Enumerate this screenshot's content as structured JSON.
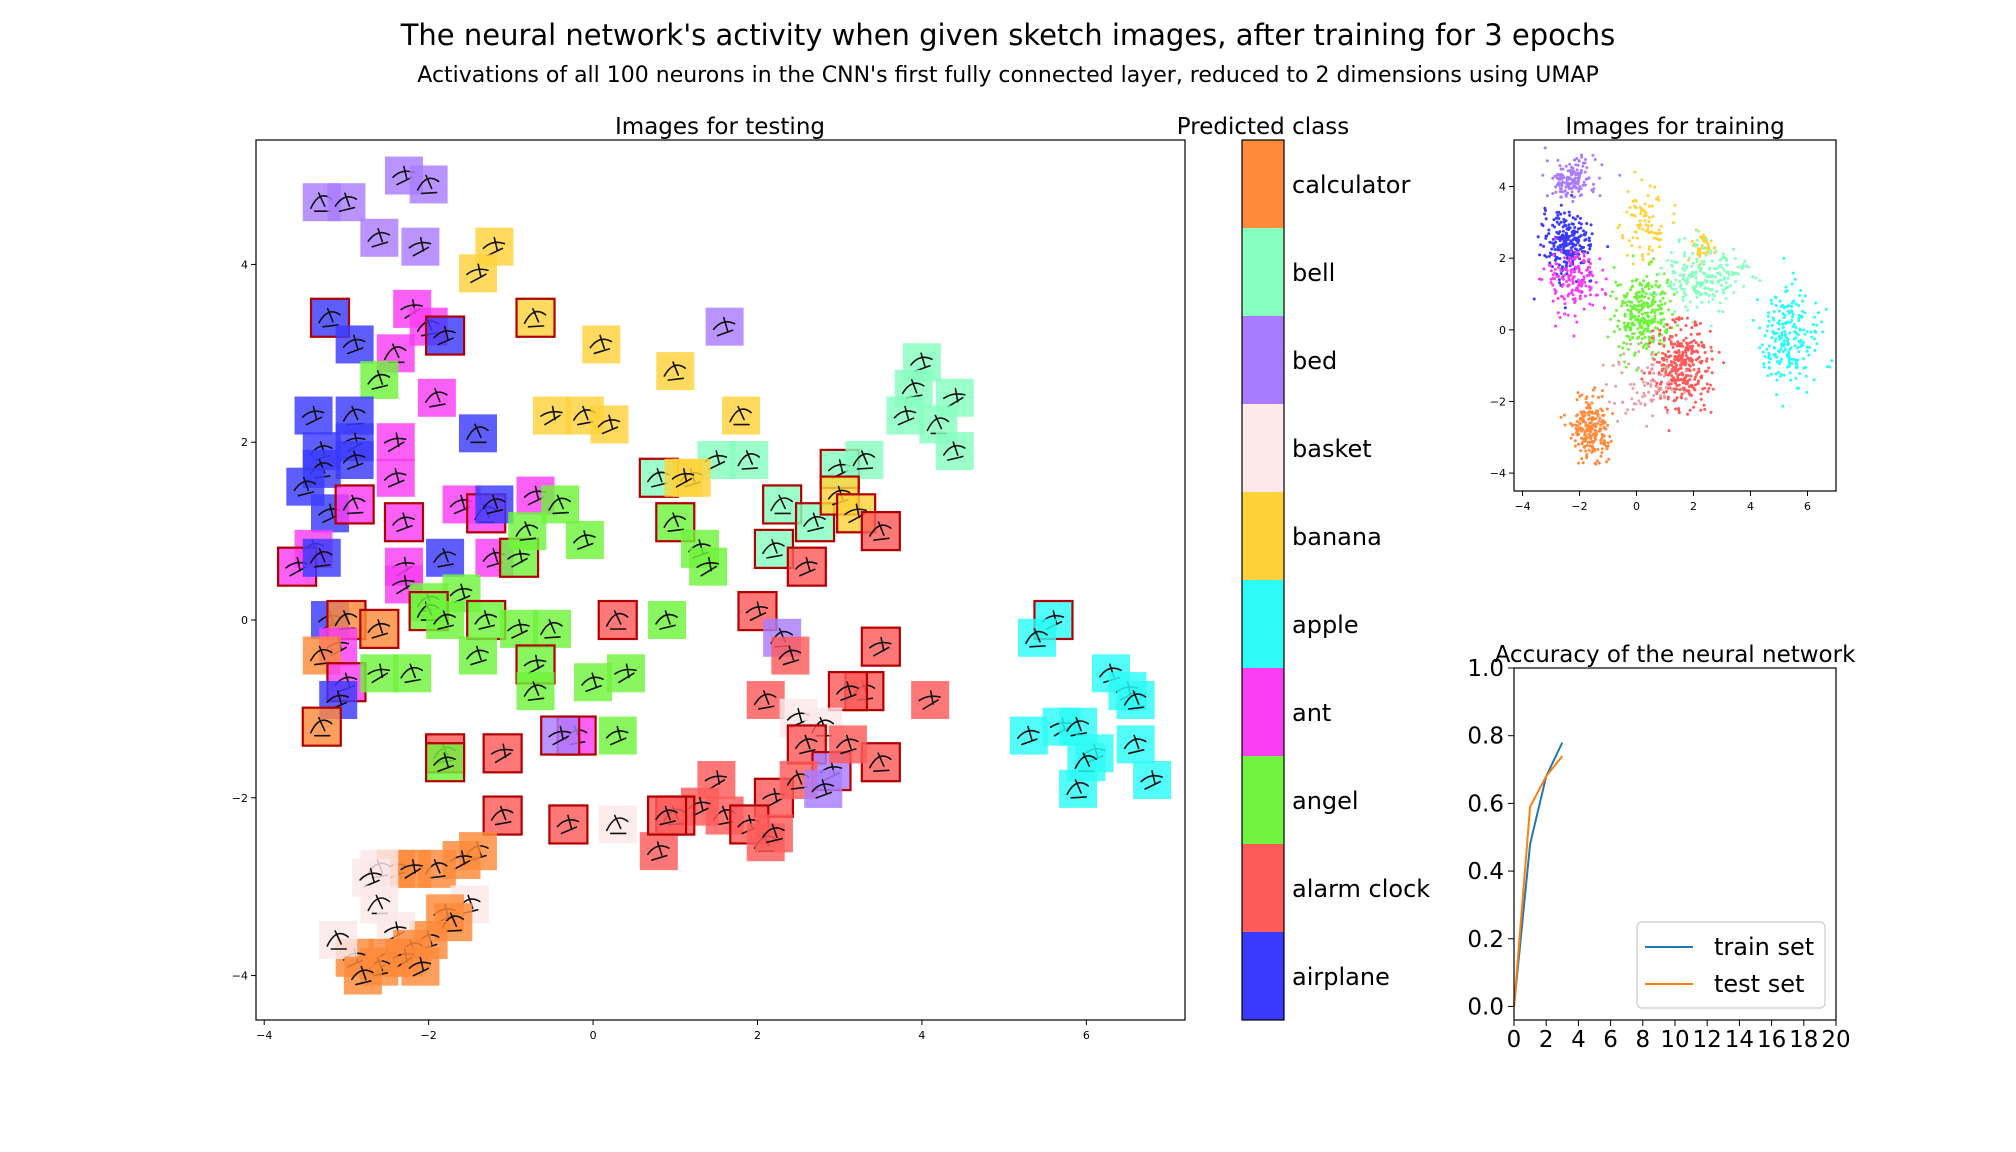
{
  "figure": {
    "title": "The neural network's activity when given sketch images, after training for 3 epochs",
    "subtitle": "Activations of all 100 neurons in the CNN's first fully connected layer, reduced to 2 dimensions using UMAP"
  },
  "chart_data": [
    {
      "id": "test",
      "type": "scatter",
      "title": "Images for testing",
      "xlabel": "",
      "ylabel": "",
      "xlim": [
        -4.1,
        7.2
      ],
      "ylim": [
        -4.5,
        5.4
      ],
      "xticks": [
        -4,
        -2,
        0,
        2,
        4,
        6
      ],
      "yticks": [
        -4,
        -2,
        0,
        2,
        4
      ],
      "xtick_labels": [
        "−4",
        "−2",
        "0",
        "2",
        "4",
        "6"
      ],
      "ytick_labels": [
        "−4",
        "−2",
        "0",
        "2",
        "4"
      ],
      "marker": "sketch thumbnail tile colored by predicted class; red border = misclassified",
      "points": [
        [
          -3.3,
          4.7,
          "bed",
          0
        ],
        [
          -3.0,
          4.7,
          "bed",
          0
        ],
        [
          -2.3,
          5.0,
          "bed",
          0
        ],
        [
          -2.0,
          4.9,
          "bed",
          0
        ],
        [
          -2.6,
          4.3,
          "bed",
          0
        ],
        [
          -2.1,
          4.2,
          "bed",
          0
        ],
        [
          -3.2,
          3.4,
          "airplane",
          1
        ],
        [
          -2.9,
          3.1,
          "airplane",
          0
        ],
        [
          -2.2,
          3.5,
          "ant",
          0
        ],
        [
          -2.0,
          3.3,
          "ant",
          0
        ],
        [
          -1.8,
          3.2,
          "airplane",
          1
        ],
        [
          -2.4,
          3.0,
          "ant",
          0
        ],
        [
          -2.6,
          2.7,
          "angel",
          0
        ],
        [
          -3.4,
          2.3,
          "airplane",
          0
        ],
        [
          -2.9,
          2.3,
          "airplane",
          0
        ],
        [
          -3.3,
          1.9,
          "airplane",
          0
        ],
        [
          -2.9,
          2.0,
          "airplane",
          0
        ],
        [
          -3.3,
          1.7,
          "airplane",
          0
        ],
        [
          -2.9,
          1.8,
          "airplane",
          0
        ],
        [
          -2.4,
          2.0,
          "ant",
          0
        ],
        [
          -1.9,
          2.5,
          "ant",
          0
        ],
        [
          -2.4,
          1.6,
          "ant",
          0
        ],
        [
          -1.4,
          2.1,
          "airplane",
          0
        ],
        [
          -3.5,
          1.5,
          "airplane",
          0
        ],
        [
          -3.2,
          1.2,
          "airplane",
          0
        ],
        [
          -2.9,
          1.3,
          "ant",
          1
        ],
        [
          -3.4,
          0.8,
          "ant",
          0
        ],
        [
          -3.6,
          0.6,
          "ant",
          1
        ],
        [
          -3.3,
          0.7,
          "airplane",
          0
        ],
        [
          -2.3,
          1.1,
          "ant",
          1
        ],
        [
          -2.3,
          0.6,
          "ant",
          0
        ],
        [
          -1.8,
          0.7,
          "airplane",
          0
        ],
        [
          -1.6,
          1.3,
          "ant",
          0
        ],
        [
          -1.3,
          1.2,
          "ant",
          1
        ],
        [
          -1.2,
          1.3,
          "airplane",
          0
        ],
        [
          -0.7,
          1.4,
          "ant",
          0
        ],
        [
          -0.4,
          1.3,
          "angel",
          0
        ],
        [
          -1.2,
          0.7,
          "ant",
          0
        ],
        [
          -0.9,
          0.7,
          "angel",
          1
        ],
        [
          -0.8,
          1.0,
          "angel",
          0
        ],
        [
          -0.1,
          0.9,
          "angel",
          0
        ],
        [
          -2.3,
          0.4,
          "ant",
          0
        ],
        [
          -2.0,
          0.2,
          "angel",
          0
        ],
        [
          -1.6,
          0.3,
          "angel",
          0
        ],
        [
          -2.0,
          0.1,
          "angel",
          1
        ],
        [
          -1.8,
          0,
          "angel",
          0
        ],
        [
          -3.2,
          0,
          "airplane",
          0
        ],
        [
          -3.0,
          0,
          "calculator",
          1
        ],
        [
          -2.6,
          -0.1,
          "calculator",
          1
        ],
        [
          -3.1,
          -0.3,
          "ant",
          0
        ],
        [
          -3.3,
          -0.4,
          "calculator",
          0
        ],
        [
          -3.0,
          -0.7,
          "ant",
          1
        ],
        [
          -2.6,
          -0.6,
          "angel",
          0
        ],
        [
          -2.2,
          -0.6,
          "angel",
          0
        ],
        [
          -3.1,
          -0.9,
          "airplane",
          0
        ],
        [
          -3.3,
          -1.2,
          "calculator",
          1
        ],
        [
          -1.3,
          0,
          "angel",
          1
        ],
        [
          -0.9,
          -0.1,
          "angel",
          0
        ],
        [
          -0.5,
          -0.1,
          "angel",
          0
        ],
        [
          -1.4,
          -0.4,
          "angel",
          0
        ],
        [
          -0.7,
          -0.5,
          "angel",
          1
        ],
        [
          -0.7,
          -0.8,
          "angel",
          0
        ],
        [
          0,
          -0.7,
          "angel",
          0
        ],
        [
          0.4,
          -0.6,
          "angel",
          0
        ],
        [
          -0.2,
          -1.3,
          "ant",
          1
        ],
        [
          0.3,
          -1.3,
          "angel",
          0
        ],
        [
          0.3,
          0,
          "alarm_clock",
          1
        ],
        [
          0.9,
          0,
          "angel",
          0
        ],
        [
          -1.2,
          4.2,
          "banana",
          0
        ],
        [
          -0.7,
          3.4,
          "banana",
          1
        ],
        [
          0.1,
          3.1,
          "banana",
          0
        ],
        [
          -1.4,
          3.9,
          "banana",
          0
        ],
        [
          1.0,
          2.8,
          "banana",
          0
        ],
        [
          1.6,
          3.3,
          "bed",
          0
        ],
        [
          -0.5,
          2.3,
          "banana",
          0
        ],
        [
          -0.1,
          2.3,
          "banana",
          0
        ],
        [
          0.2,
          2.2,
          "banana",
          0
        ],
        [
          1.8,
          2.3,
          "banana",
          0
        ],
        [
          0.8,
          1.6,
          "bell",
          1
        ],
        [
          1.5,
          1.8,
          "bell",
          0
        ],
        [
          1.9,
          1.8,
          "bell",
          0
        ],
        [
          1.2,
          1.6,
          "banana",
          0
        ],
        [
          1.1,
          1.6,
          "banana",
          0
        ],
        [
          1.0,
          1.1,
          "angel",
          1
        ],
        [
          1.3,
          0.8,
          "angel",
          0
        ],
        [
          1.4,
          0.6,
          "angel",
          0
        ],
        [
          2.2,
          0.8,
          "bell",
          1
        ],
        [
          2.6,
          0.6,
          "alarm_clock",
          1
        ],
        [
          2.3,
          1.3,
          "bell",
          1
        ],
        [
          2.7,
          1.1,
          "bell",
          1
        ],
        [
          3.0,
          1.7,
          "bell",
          1
        ],
        [
          3.3,
          1.8,
          "bell",
          0
        ],
        [
          3.0,
          1.4,
          "banana",
          1
        ],
        [
          3.2,
          1.2,
          "banana",
          1
        ],
        [
          3.5,
          1.0,
          "alarm_clock",
          1
        ],
        [
          4.0,
          2.9,
          "bell",
          0
        ],
        [
          4.4,
          2.5,
          "bell",
          0
        ],
        [
          3.9,
          2.6,
          "bell",
          0
        ],
        [
          3.8,
          2.3,
          "bell",
          0
        ],
        [
          4.2,
          2.2,
          "bell",
          0
        ],
        [
          4.4,
          1.9,
          "bell",
          0
        ],
        [
          2.0,
          0.1,
          "alarm_clock",
          1
        ],
        [
          2.3,
          -0.2,
          "bed",
          0
        ],
        [
          2.4,
          -0.4,
          "alarm_clock",
          0
        ],
        [
          3.5,
          -0.3,
          "alarm_clock",
          1
        ],
        [
          3.3,
          -0.8,
          "alarm_clock",
          1
        ],
        [
          3.1,
          -0.8,
          "alarm_clock",
          1
        ],
        [
          4.1,
          -0.9,
          "alarm_clock",
          0
        ],
        [
          2.1,
          -0.9,
          "alarm_clock",
          0
        ],
        [
          2.5,
          -1.1,
          "basket",
          0
        ],
        [
          2.8,
          -1.2,
          "basket",
          0
        ],
        [
          2.6,
          -1.4,
          "alarm_clock",
          1
        ],
        [
          2.9,
          -1.7,
          "bed",
          1
        ],
        [
          3.5,
          -1.6,
          "alarm_clock",
          1
        ],
        [
          3.1,
          -1.4,
          "alarm_clock",
          0
        ],
        [
          2.2,
          -2.0,
          "alarm_clock",
          1
        ],
        [
          2.5,
          -1.8,
          "alarm_clock",
          0
        ],
        [
          2.8,
          -1.9,
          "bed",
          0
        ],
        [
          1.5,
          -1.8,
          "alarm_clock",
          0
        ],
        [
          1.6,
          -2.2,
          "alarm_clock",
          0
        ],
        [
          1.9,
          -2.3,
          "alarm_clock",
          1
        ],
        [
          2.1,
          -2.5,
          "alarm_clock",
          0
        ],
        [
          2.2,
          -2.4,
          "alarm_clock",
          0
        ],
        [
          1.3,
          -2.1,
          "alarm_clock",
          0
        ],
        [
          1.0,
          -2.2,
          "alarm_clock",
          1
        ],
        [
          0.8,
          -2.6,
          "alarm_clock",
          0
        ],
        [
          -0.4,
          -1.3,
          "bed",
          1
        ],
        [
          -1.8,
          -1.5,
          "alarm_clock",
          1
        ],
        [
          -1.8,
          -1.6,
          "angel",
          1
        ],
        [
          -1.1,
          -1.5,
          "alarm_clock",
          1
        ],
        [
          -1.1,
          -2.2,
          "alarm_clock",
          1
        ],
        [
          -0.3,
          -2.3,
          "alarm_clock",
          1
        ],
        [
          0.3,
          -2.3,
          "basket",
          0
        ],
        [
          0.9,
          -2.2,
          "alarm_clock",
          1
        ],
        [
          5.6,
          0,
          "apple",
          1
        ],
        [
          5.4,
          -0.2,
          "apple",
          0
        ],
        [
          6.3,
          -0.6,
          "apple",
          0
        ],
        [
          6.5,
          -0.8,
          "apple",
          0
        ],
        [
          6.6,
          -0.9,
          "apple",
          0
        ],
        [
          5.3,
          -1.3,
          "apple",
          0
        ],
        [
          5.7,
          -1.2,
          "apple",
          0
        ],
        [
          5.9,
          -1.2,
          "apple",
          0
        ],
        [
          6.1,
          -1.5,
          "apple",
          0
        ],
        [
          6.0,
          -1.6,
          "apple",
          0
        ],
        [
          6.6,
          -1.4,
          "apple",
          0
        ],
        [
          6.8,
          -1.8,
          "apple",
          0
        ],
        [
          5.9,
          -1.9,
          "apple",
          0
        ],
        [
          -1.4,
          -2.6,
          "calculator",
          0
        ],
        [
          -1.6,
          -2.7,
          "calculator",
          0
        ],
        [
          -1.9,
          -2.8,
          "calculator",
          0
        ],
        [
          -2.4,
          -2.8,
          "calculator",
          0
        ],
        [
          -2.2,
          -2.8,
          "calculator",
          0
        ],
        [
          -2.6,
          -2.8,
          "basket",
          0
        ],
        [
          -2.7,
          -2.9,
          "basket",
          0
        ],
        [
          -2.6,
          -3.2,
          "basket",
          0
        ],
        [
          -1.5,
          -3.2,
          "basket",
          0
        ],
        [
          -1.8,
          -3.3,
          "calculator",
          0
        ],
        [
          -1.7,
          -3.4,
          "calculator",
          0
        ],
        [
          -2.0,
          -3.6,
          "calculator",
          0
        ],
        [
          -2.4,
          -3.5,
          "basket",
          0
        ],
        [
          -2.2,
          -3.7,
          "calculator",
          0
        ],
        [
          -2.5,
          -3.8,
          "calculator",
          0
        ],
        [
          -2.3,
          -3.8,
          "calculator",
          0
        ],
        [
          -2.6,
          -3.9,
          "calculator",
          0
        ],
        [
          -2.9,
          -3.8,
          "calculator",
          0
        ],
        [
          -3.1,
          -3.6,
          "basket",
          0
        ],
        [
          -2.8,
          -4.0,
          "calculator",
          0
        ],
        [
          -2.1,
          -3.9,
          "calculator",
          0
        ]
      ]
    },
    {
      "id": "colorbar",
      "type": "colorbar",
      "title": "Predicted class",
      "classes": [
        "calculator",
        "bell",
        "bed",
        "basket",
        "banana",
        "apple",
        "ant",
        "angel",
        "alarm clock",
        "airplane"
      ],
      "colors": [
        "#ff8a3a",
        "#86ffbf",
        "#a97cff",
        "#fde8ea",
        "#ffd23a",
        "#2cfbf6",
        "#f93df3",
        "#6ff33c",
        "#ff5a5a",
        "#3a3aff"
      ]
    },
    {
      "id": "train",
      "type": "scatter",
      "title": "Images for training",
      "xlim": [
        -4.3,
        7.0
      ],
      "ylim": [
        -4.5,
        5.3
      ],
      "xticks": [
        -4,
        -2,
        0,
        2,
        4,
        6
      ],
      "yticks": [
        -4,
        -2,
        0,
        2,
        4
      ],
      "xtick_labels": [
        "−4",
        "−2",
        "0",
        "2",
        "4",
        "6"
      ],
      "ytick_labels": [
        "−4",
        "−2",
        "0",
        "2",
        "4"
      ],
      "clusters": [
        {
          "class": "bed",
          "cx": -2.3,
          "cy": 4.2,
          "sx": 0.8,
          "sy": 0.55,
          "n": 160
        },
        {
          "class": "airplane",
          "cx": -2.4,
          "cy": 2.4,
          "sx": 0.8,
          "sy": 0.8,
          "n": 260
        },
        {
          "class": "ant",
          "cx": -2.2,
          "cy": 1.4,
          "sx": 0.9,
          "sy": 0.9,
          "n": 160
        },
        {
          "class": "banana",
          "cx": 0.3,
          "cy": 3.0,
          "sx": 0.7,
          "sy": 0.9,
          "n": 90
        },
        {
          "class": "banana",
          "cx": 2.3,
          "cy": 2.3,
          "sx": 0.4,
          "sy": 0.4,
          "n": 40
        },
        {
          "class": "angel",
          "cx": 0.2,
          "cy": 0.4,
          "sx": 0.9,
          "sy": 1.0,
          "n": 300
        },
        {
          "class": "bell",
          "cx": 2.4,
          "cy": 1.5,
          "sx": 1.2,
          "sy": 0.8,
          "n": 220
        },
        {
          "class": "alarm_clock",
          "cx": 1.6,
          "cy": -1.0,
          "sx": 1.0,
          "sy": 1.1,
          "n": 320
        },
        {
          "class": "apple",
          "cx": 5.4,
          "cy": -0.2,
          "sx": 0.9,
          "sy": 1.2,
          "n": 230
        },
        {
          "class": "calculator",
          "cx": -1.6,
          "cy": -2.8,
          "sx": 0.6,
          "sy": 0.8,
          "n": 220
        },
        {
          "class": "basket",
          "cx": 0.2,
          "cy": -1.6,
          "sx": 1.2,
          "sy": 0.9,
          "n": 80
        }
      ]
    },
    {
      "id": "accuracy",
      "type": "line",
      "title": "Accuracy of the neural network",
      "xlabel": "",
      "ylabel": "",
      "xlim": [
        0,
        20
      ],
      "ylim": [
        -0.04,
        1.0
      ],
      "xticks": [
        0,
        2,
        4,
        6,
        8,
        10,
        12,
        14,
        16,
        18,
        20
      ],
      "yticks": [
        0.0,
        0.2,
        0.4,
        0.6,
        0.8,
        1.0
      ],
      "ytick_labels": [
        "0.0",
        "0.2",
        "0.4",
        "0.6",
        "0.8",
        "1.0"
      ],
      "legend_position": "bottom-right",
      "series": [
        {
          "name": "train set",
          "color": "#1f77b4",
          "x": [
            0,
            1,
            2,
            3
          ],
          "y": [
            0.0,
            0.48,
            0.68,
            0.78
          ]
        },
        {
          "name": "test set",
          "color": "#ff7f0e",
          "x": [
            0,
            1,
            2,
            3
          ],
          "y": [
            0.0,
            0.59,
            0.68,
            0.74
          ]
        }
      ]
    }
  ]
}
